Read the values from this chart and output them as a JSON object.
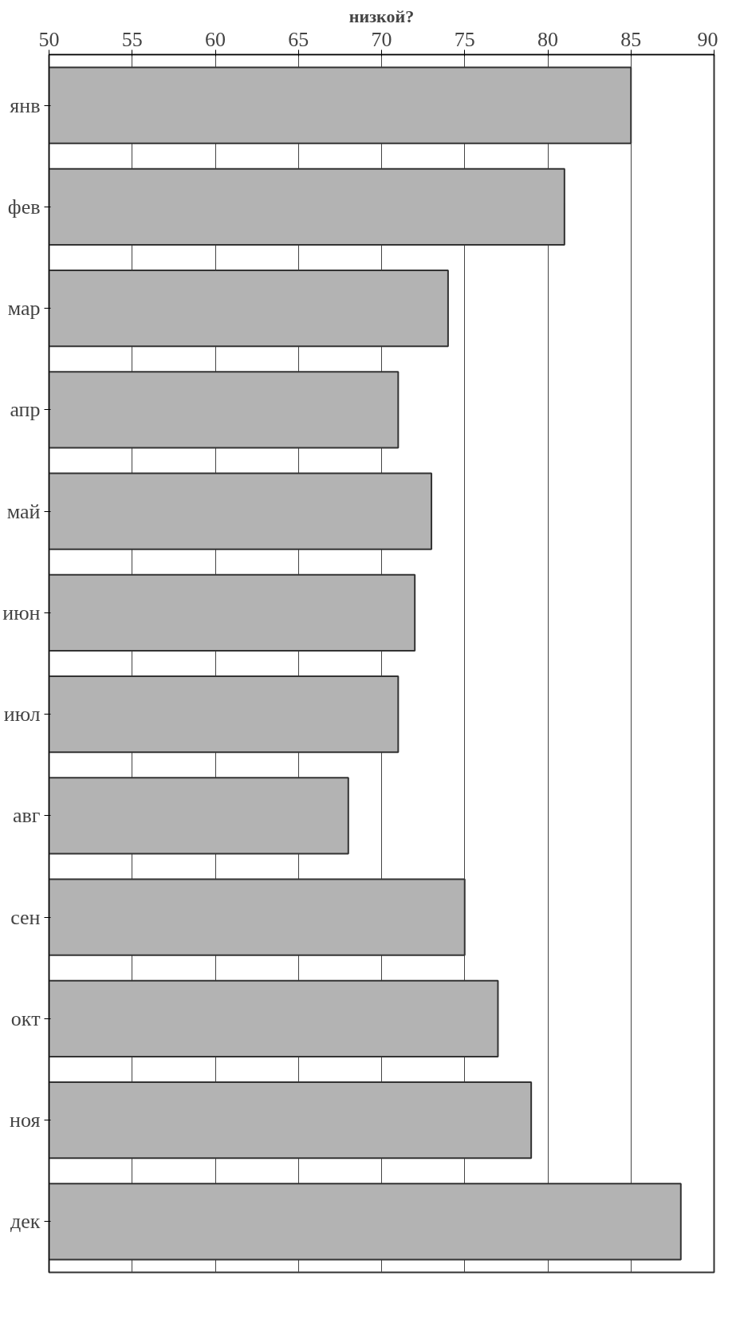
{
  "chart_data": {
    "type": "bar",
    "orientation": "horizontal",
    "title": "низкой?",
    "categories": [
      "янв",
      "фев",
      "мар",
      "апр",
      "май",
      "июн",
      "июл",
      "авг",
      "сен",
      "окт",
      "ноя",
      "дек"
    ],
    "values": [
      85,
      81,
      74,
      71,
      73,
      72,
      71,
      68,
      75,
      77,
      79,
      88
    ],
    "color": "#b3b3b3",
    "xlim": [
      50,
      90
    ],
    "xticks": [
      50,
      55,
      60,
      65,
      70,
      75,
      80,
      85,
      90
    ],
    "grid": true
  }
}
